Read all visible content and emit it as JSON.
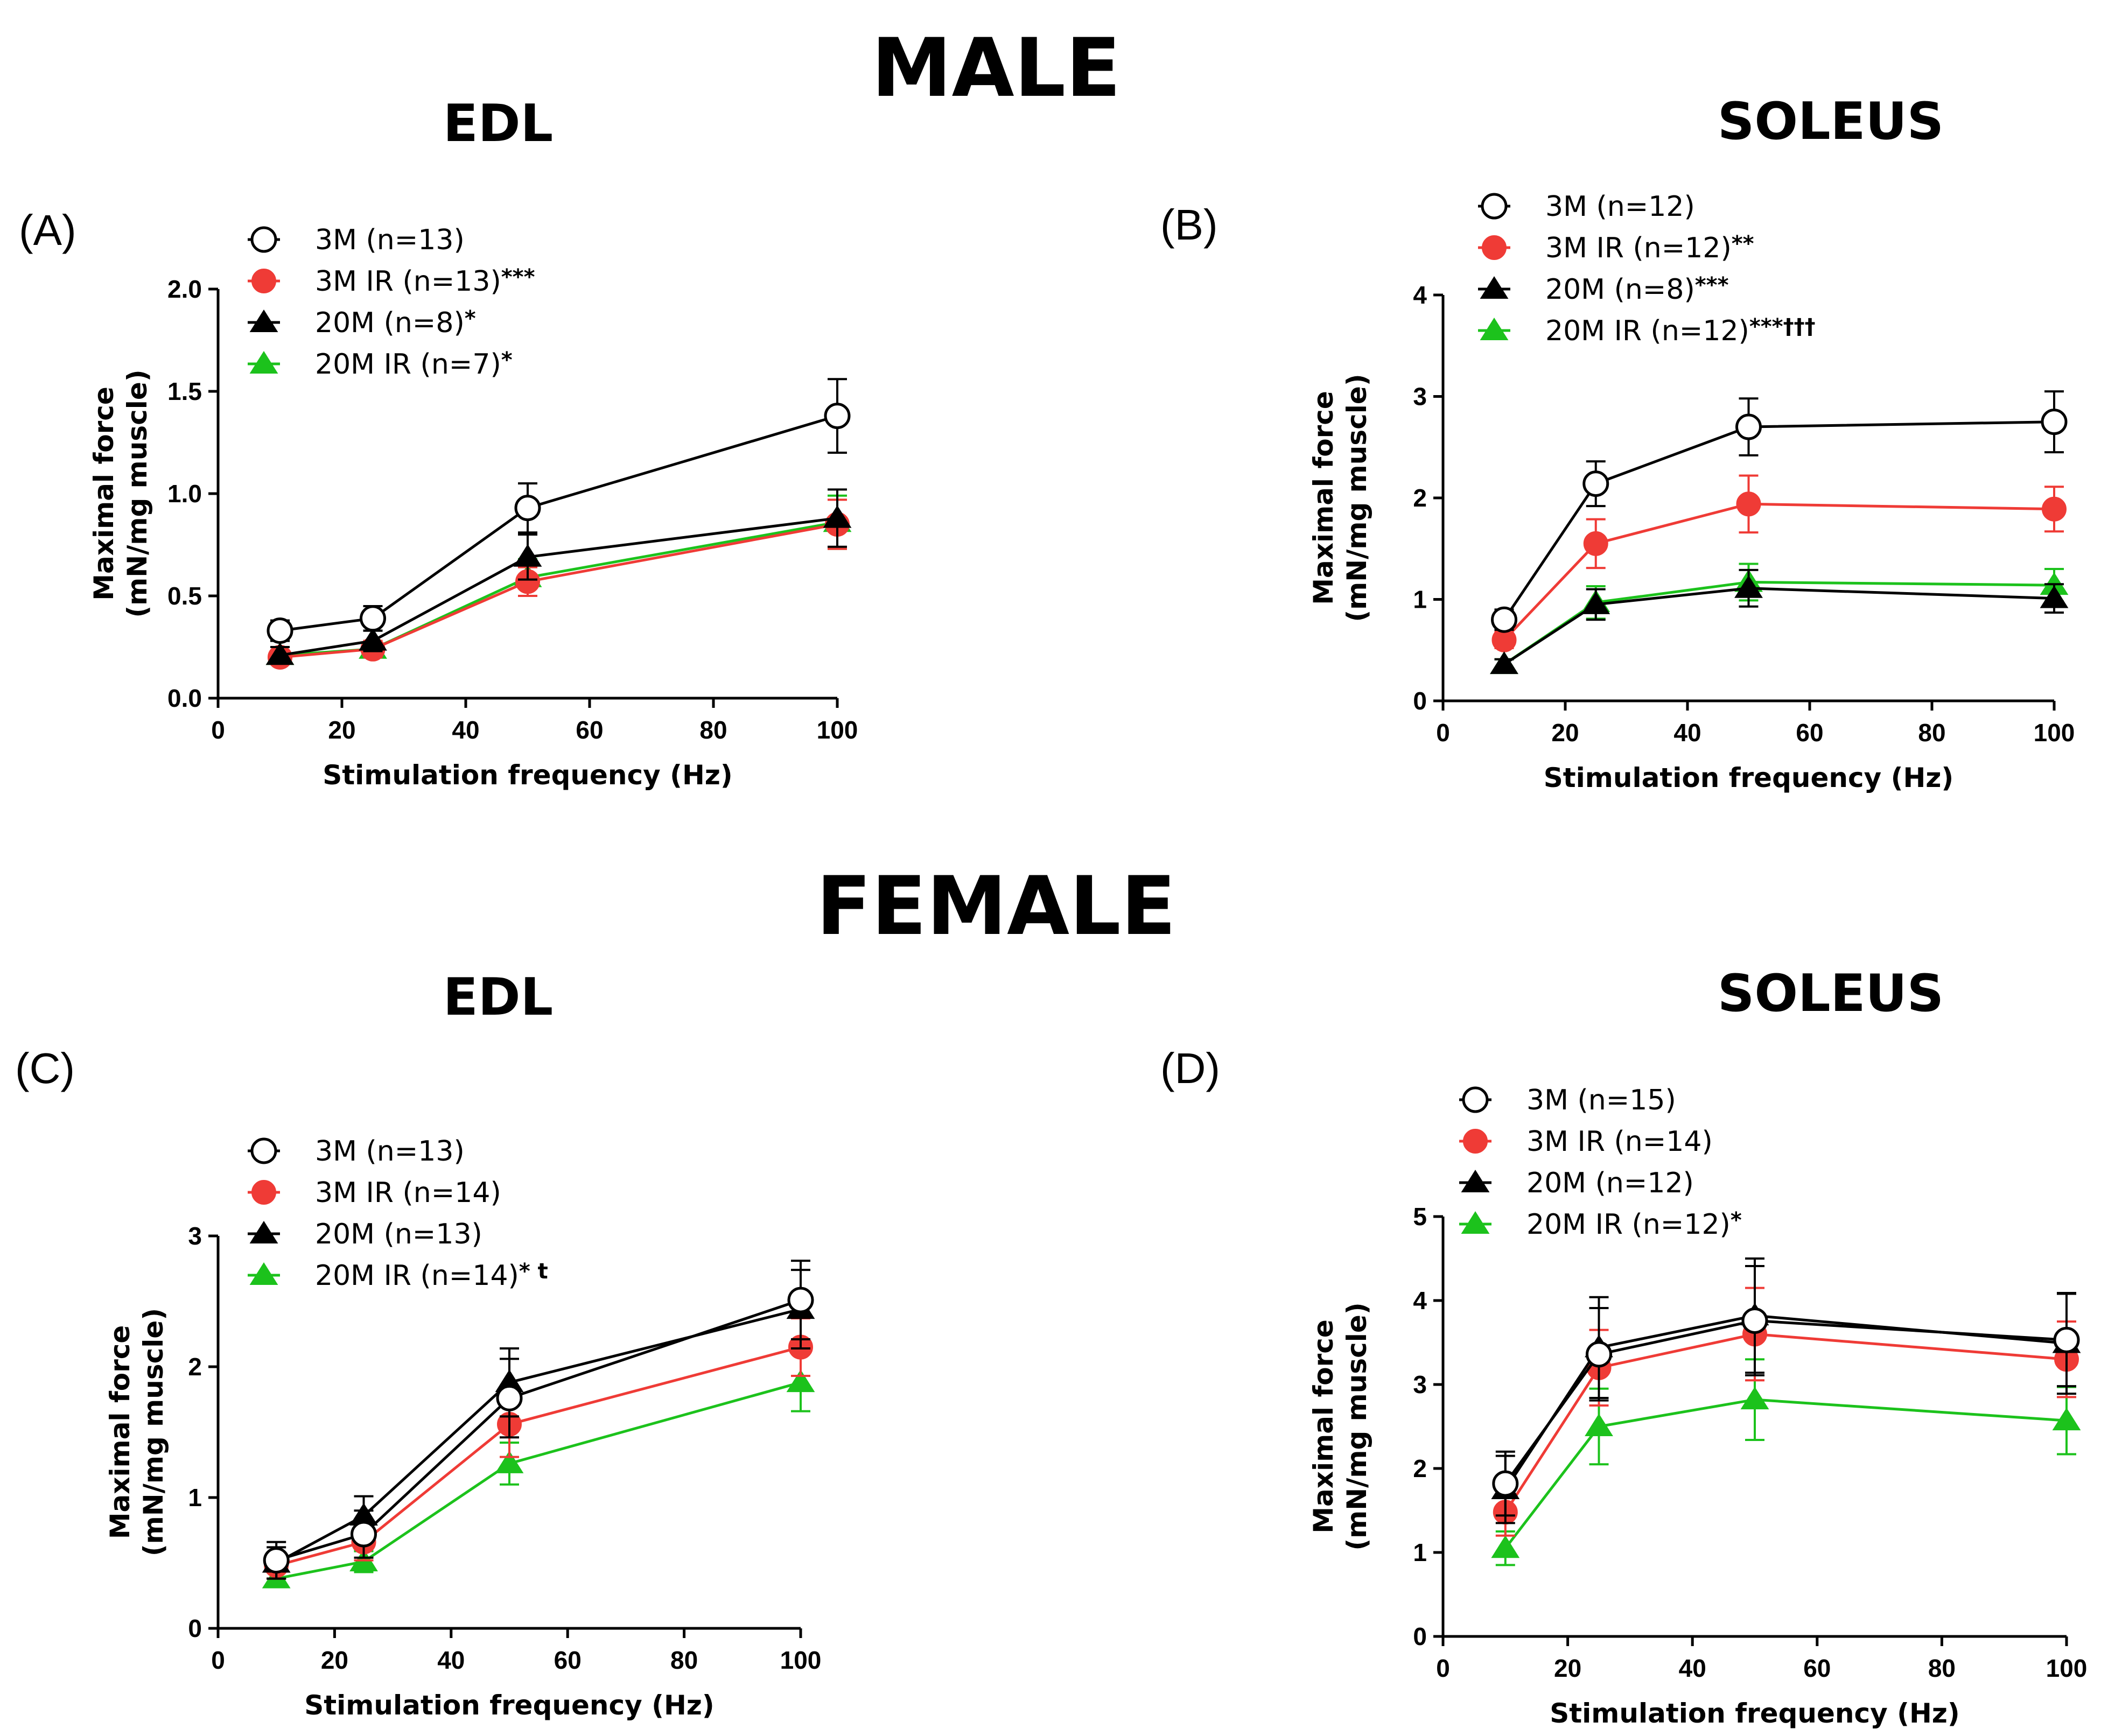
{
  "figure": {
    "male_title": "MALE",
    "female_title": "FEMALE"
  },
  "colors": {
    "3M": "#000000",
    "3M IR": "#ef3b36",
    "20M": "#000000",
    "20M IR": "#1cc21c"
  },
  "chart_data": [
    {
      "id": "A",
      "type": "line",
      "panel_label": "(A)",
      "title": "EDL",
      "xlabel": "Stimulation frequency (Hz)",
      "ylabel_line1": "Maximal force",
      "ylabel_line2": "(mN/mg muscle)",
      "xlim": [
        0,
        100
      ],
      "ylim": [
        0,
        2.0
      ],
      "xticks": [
        0,
        20,
        40,
        60,
        80,
        100
      ],
      "yticks": [
        0.0,
        0.5,
        1.0,
        1.5,
        2.0
      ],
      "ytick_labels": [
        "0.0",
        "0.5",
        "1.0",
        "1.5",
        "2.0"
      ],
      "x": [
        10,
        25,
        50,
        100
      ],
      "series": [
        {
          "key": "3M",
          "marker": "open-circle",
          "legend": "3M (n=13)",
          "sig": "",
          "values": [
            0.33,
            0.39,
            0.93,
            1.38
          ],
          "err": [
            0.05,
            0.06,
            0.12,
            0.18
          ]
        },
        {
          "key": "3M IR",
          "marker": "filled-circle",
          "legend": "3M IR (n=13)",
          "sig": "***",
          "values": [
            0.2,
            0.24,
            0.57,
            0.85
          ],
          "err": [
            0.03,
            0.04,
            0.07,
            0.12
          ]
        },
        {
          "key": "20M",
          "marker": "triangle",
          "legend": "20M (n=8)",
          "sig": "*",
          "values": [
            0.21,
            0.28,
            0.69,
            0.88
          ],
          "err": [
            0.04,
            0.05,
            0.11,
            0.14
          ]
        },
        {
          "key": "20M IR",
          "marker": "triangle",
          "legend": "20M IR (n=7)",
          "sig": "*",
          "values": [
            0.21,
            0.24,
            0.59,
            0.86
          ],
          "err": [
            0.04,
            0.04,
            0.09,
            0.13
          ]
        }
      ]
    },
    {
      "id": "B",
      "type": "line",
      "panel_label": "(B)",
      "title": "SOLEUS",
      "xlabel": "Stimulation frequency (Hz)",
      "ylabel_line1": "Maximal force",
      "ylabel_line2": "(mN/mg muscle)",
      "xlim": [
        0,
        100
      ],
      "ylim": [
        0,
        4
      ],
      "xticks": [
        0,
        20,
        40,
        60,
        80,
        100
      ],
      "yticks": [
        0,
        1,
        2,
        3,
        4
      ],
      "ytick_labels": [
        "0",
        "1",
        "2",
        "3",
        "4"
      ],
      "x": [
        10,
        25,
        50,
        100
      ],
      "series": [
        {
          "key": "3M",
          "marker": "open-circle",
          "legend": "3M (n=12)",
          "sig": "",
          "values": [
            0.8,
            2.14,
            2.7,
            2.75
          ],
          "err": [
            0.1,
            0.22,
            0.28,
            0.3
          ]
        },
        {
          "key": "3M IR",
          "marker": "filled-circle",
          "legend": "3M IR (n=12)",
          "sig": "**",
          "values": [
            0.6,
            1.55,
            1.94,
            1.89
          ],
          "err": [
            0.08,
            0.24,
            0.28,
            0.22
          ]
        },
        {
          "key": "20M",
          "marker": "triangle",
          "legend": "20M (n=8)",
          "sig": "***",
          "values": [
            0.36,
            0.95,
            1.11,
            1.01
          ],
          "err": [
            0.05,
            0.15,
            0.18,
            0.14
          ]
        },
        {
          "key": "20M IR",
          "marker": "triangle",
          "legend": "20M IR (n=12)",
          "sig": "***†††",
          "values": [
            0.36,
            0.97,
            1.17,
            1.14
          ],
          "err": [
            0.05,
            0.16,
            0.18,
            0.16
          ]
        }
      ]
    },
    {
      "id": "C",
      "type": "line",
      "panel_label": "(C)",
      "title": "EDL",
      "xlabel": "Stimulation frequency (Hz)",
      "ylabel_line1": "Maximal force",
      "ylabel_line2": "(mN/mg muscle)",
      "xlim": [
        0,
        100
      ],
      "ylim": [
        0,
        3
      ],
      "xticks": [
        0,
        20,
        40,
        60,
        80,
        100
      ],
      "yticks": [
        0,
        1,
        2,
        3
      ],
      "ytick_labels": [
        "0",
        "1",
        "2",
        "3"
      ],
      "x": [
        10,
        25,
        50,
        100
      ],
      "series": [
        {
          "key": "3M",
          "marker": "open-circle",
          "legend": "3M (n=13)",
          "sig": "",
          "values": [
            0.52,
            0.72,
            1.76,
            2.51
          ],
          "err": [
            0.14,
            0.18,
            0.3,
            0.3
          ]
        },
        {
          "key": "3M IR",
          "marker": "filled-circle",
          "legend": "3M IR (n=14)",
          "sig": "",
          "values": [
            0.48,
            0.66,
            1.56,
            2.15
          ],
          "err": [
            0.1,
            0.14,
            0.25,
            0.22
          ]
        },
        {
          "key": "20M",
          "marker": "triangle",
          "legend": "20M (n=13)",
          "sig": "",
          "values": [
            0.5,
            0.86,
            1.88,
            2.44
          ],
          "err": [
            0.12,
            0.15,
            0.26,
            0.3
          ]
        },
        {
          "key": "20M IR",
          "marker": "triangle",
          "legend": "20M IR (n=14)",
          "sig": "* t",
          "values": [
            0.38,
            0.51,
            1.26,
            1.88
          ],
          "err": [
            0.06,
            0.08,
            0.16,
            0.22
          ]
        }
      ]
    },
    {
      "id": "D",
      "type": "line",
      "panel_label": "(D)",
      "title": "SOLEUS",
      "xlabel": "Stimulation frequency (Hz)",
      "ylabel_line1": "Maximal force",
      "ylabel_line2": "(mN/mg muscle)",
      "xlim": [
        0,
        100
      ],
      "ylim": [
        0,
        5
      ],
      "xticks": [
        0,
        20,
        40,
        60,
        80,
        100
      ],
      "yticks": [
        0,
        1,
        2,
        3,
        4,
        5
      ],
      "ytick_labels": [
        "0",
        "1",
        "2",
        "3",
        "4",
        "5"
      ],
      "x": [
        10,
        25,
        50,
        100
      ],
      "series": [
        {
          "key": "3M",
          "marker": "open-circle",
          "legend": "3M (n=15)",
          "sig": "",
          "values": [
            1.82,
            3.36,
            3.76,
            3.53
          ],
          "err": [
            0.38,
            0.55,
            0.65,
            0.55
          ]
        },
        {
          "key": "3M IR",
          "marker": "filled-circle",
          "legend": "3M IR (n=14)",
          "sig": "",
          "values": [
            1.48,
            3.2,
            3.6,
            3.3
          ],
          "err": [
            0.28,
            0.45,
            0.55,
            0.45
          ]
        },
        {
          "key": "20M",
          "marker": "triangle",
          "legend": "20M (n=12)",
          "sig": "",
          "values": [
            1.75,
            3.44,
            3.82,
            3.49
          ],
          "err": [
            0.4,
            0.6,
            0.68,
            0.6
          ]
        },
        {
          "key": "20M IR",
          "marker": "triangle",
          "legend": "20M IR (n=12)",
          "sig": "*",
          "values": [
            1.05,
            2.5,
            2.82,
            2.57
          ],
          "err": [
            0.2,
            0.45,
            0.48,
            0.4
          ]
        }
      ]
    }
  ]
}
